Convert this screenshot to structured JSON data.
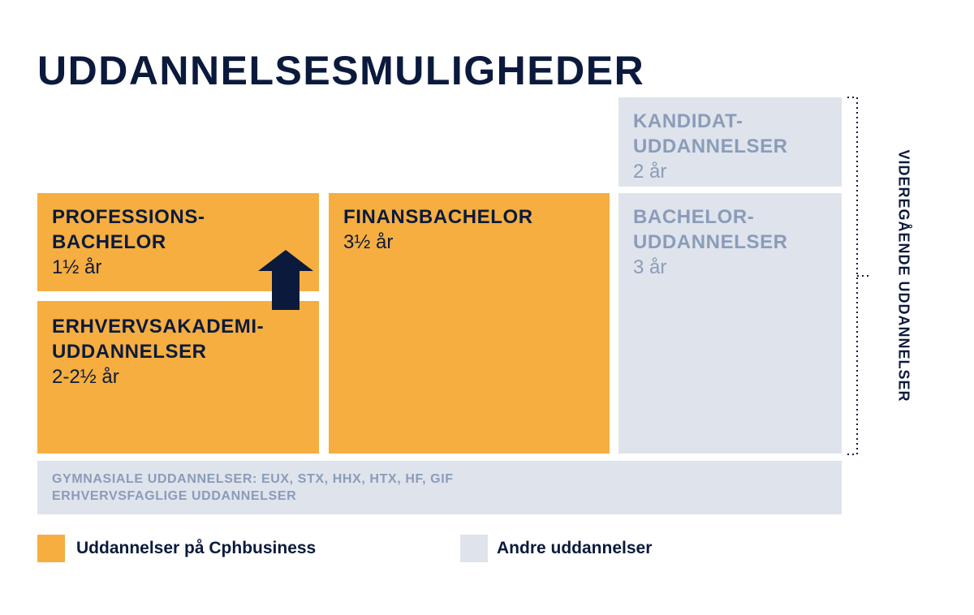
{
  "title": "UDDANNELSESMULIGHEDER",
  "colors": {
    "cphbusiness": "#f6ae40",
    "other": "#dfe3ec",
    "navy": "#0b1a3c",
    "grey_text": "#8a9cb8"
  },
  "boxes": {
    "professionsbachelor": {
      "title_line1": "PROFESSIONS-",
      "title_line2": "BACHELOR",
      "duration": "1½ år"
    },
    "erhvervsakademi": {
      "title_line1": "ERHVERVSAKADEMI-",
      "title_line2": "UDDANNELSER",
      "duration": "2-2½ år"
    },
    "finansbachelor": {
      "title": "FINANSBACHELOR",
      "duration": "3½ år"
    },
    "kandidat": {
      "title_line1": "KANDIDAT-",
      "title_line2": "UDDANNELSER",
      "duration": "2 år"
    },
    "bachelor": {
      "title_line1": "BACHELOR-",
      "title_line2": "UDDANNELSER",
      "duration": "3 år"
    },
    "gymnasiale": {
      "line1": "GYMNASIALE UDDANNELSER: EUX, STX, HHX, HTX, HF, GIF",
      "line2": "ERHVERVSFAGLIGE UDDANNELSER"
    }
  },
  "side_label": "VIDEREGÅENDE UDDANNELSER",
  "legend": [
    {
      "label": "Uddannelser på Cphbusiness"
    },
    {
      "label": "Andre uddannelser"
    }
  ],
  "icons": {
    "arrow": "arrow-up-icon"
  }
}
